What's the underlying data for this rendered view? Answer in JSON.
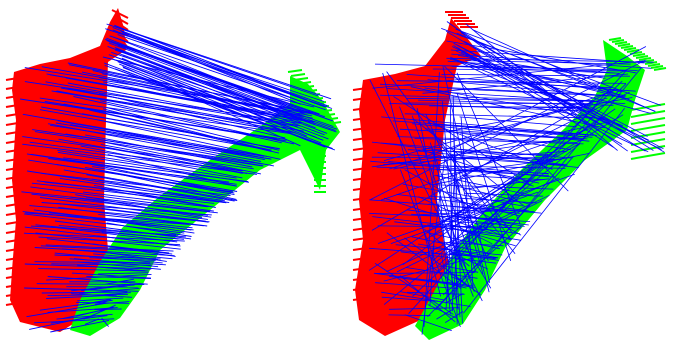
{
  "colors": {
    "source_cloud": "#ff0000",
    "target_cloud": "#00ff00",
    "correspondence": "#0000ff",
    "background": "#ffffff"
  },
  "panels": [
    {
      "name": "left",
      "correspondence_quality": "mostly-consistent"
    },
    {
      "name": "right",
      "correspondence_quality": "mixed-with-outliers"
    }
  ]
}
